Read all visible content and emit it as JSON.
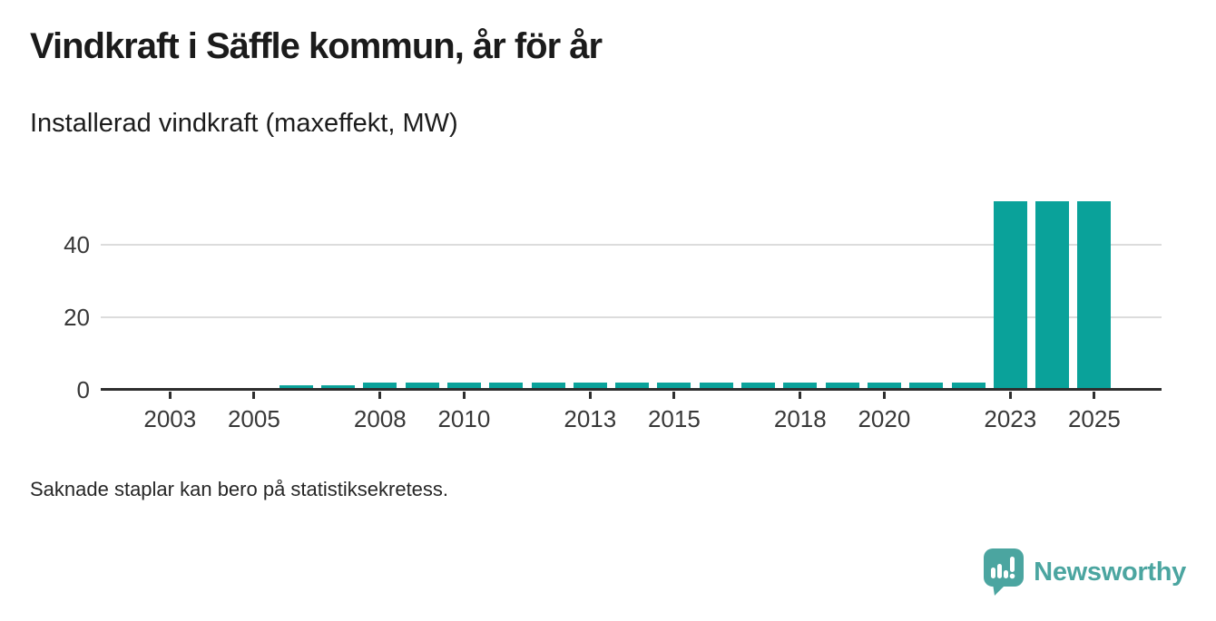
{
  "header": {
    "title": "Vindkraft i Säffle kommun, år för år",
    "subtitle": "Installerad vindkraft (maxeffekt, MW)"
  },
  "chart_data": {
    "type": "bar",
    "title": "Vindkraft i Säffle kommun, år för år",
    "subtitle": "Installerad vindkraft (maxeffekt, MW)",
    "xlabel": "",
    "ylabel": "",
    "categories": [
      2002,
      2003,
      2004,
      2005,
      2006,
      2007,
      2008,
      2009,
      2010,
      2011,
      2012,
      2013,
      2014,
      2015,
      2016,
      2017,
      2018,
      2019,
      2020,
      2021,
      2022,
      2023,
      2024,
      2025
    ],
    "values": [
      0,
      0,
      0,
      0,
      1.3,
      1.3,
      2,
      2,
      2,
      2,
      2,
      2,
      2,
      2,
      2,
      2,
      2,
      2,
      2,
      2,
      2,
      52,
      52,
      52
    ],
    "ylim": [
      0,
      55
    ],
    "yticks": [
      0,
      20,
      40
    ],
    "ytick_labels": [
      "0",
      "20",
      "40"
    ],
    "xtick_years": [
      2003,
      2005,
      2008,
      2010,
      2013,
      2015,
      2018,
      2020,
      2023,
      2025
    ],
    "xtick_labels": [
      "2003",
      "2005",
      "2008",
      "2010",
      "2013",
      "2015",
      "2018",
      "2020",
      "2023",
      "2025"
    ],
    "grid": "horizontal",
    "legend_position": "none",
    "bar_color": "#0aa29a",
    "axis_color": "#2e2e2e",
    "grid_color": "#dcdcdc",
    "tick_label_color": "#383838"
  },
  "footer": {
    "note": "Saknade staplar kan bero på statistiksekretess."
  },
  "branding": {
    "logo_text": "Newsworthy",
    "logo_color": "#4ba5a0",
    "logo_icon": "newsworthy-speech-bubble-bar-chart-icon"
  }
}
